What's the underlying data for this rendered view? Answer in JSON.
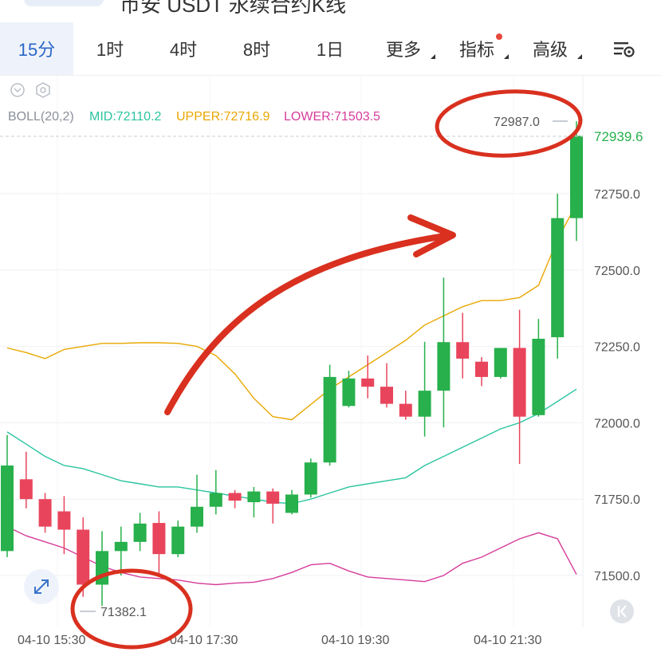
{
  "header_fragment": "币安 USDT 永续合约K线",
  "tabs": [
    {
      "label": "15分",
      "active": true
    },
    {
      "label": "1时"
    },
    {
      "label": "4时"
    },
    {
      "label": "8时"
    },
    {
      "label": "1日"
    },
    {
      "label": "更多",
      "dropdown": true
    },
    {
      "label": "指标",
      "dropdown": true,
      "badge": true
    },
    {
      "label": "高级",
      "dropdown": true
    }
  ],
  "settings_icon": "chart-settings-icon",
  "indicator": {
    "name": "BOLL(20,2)",
    "mid_label": "MID:72110.2",
    "upper_label": "UPPER:72716.9",
    "lower_label": "LOWER:71503.5",
    "colors": {
      "mid": "#2bc4a0",
      "upper": "#e8a700",
      "lower": "#d63c9b"
    }
  },
  "colors": {
    "up": "#27b04b",
    "down": "#e8455c",
    "annotation": "#d9301f",
    "price_tag": "#27b04b"
  },
  "annotations": {
    "high_label": "72987.0",
    "low_label": "71382.1"
  },
  "current_price": "72939.6",
  "chart_data": {
    "type": "candlestick",
    "y_ticks": [
      72750.0,
      72500.0,
      72250.0,
      72000.0,
      71750.0,
      71500.0
    ],
    "y_tick_labels": [
      "72750.0",
      "72500.0",
      "72250.0",
      "72000.0",
      "71750.0",
      "71500.0"
    ],
    "x_tick_labels": [
      "04-10 15:30",
      "04-10 17:30",
      "04-10 19:30",
      "04-10 21:30"
    ],
    "candles": [
      {
        "o": 71580,
        "h": 71960,
        "l": 71560,
        "c": 71860
      },
      {
        "o": 71815,
        "h": 71905,
        "l": 71720,
        "c": 71750
      },
      {
        "o": 71750,
        "h": 71770,
        "l": 71640,
        "c": 71660
      },
      {
        "o": 71710,
        "h": 71760,
        "l": 71570,
        "c": 71650
      },
      {
        "o": 71650,
        "h": 71690,
        "l": 71430,
        "c": 71470
      },
      {
        "o": 71470,
        "h": 71645,
        "l": 71400,
        "c": 71580
      },
      {
        "o": 71580,
        "h": 71660,
        "l": 71500,
        "c": 71610
      },
      {
        "o": 71610,
        "h": 71705,
        "l": 71580,
        "c": 71670
      },
      {
        "o": 71672,
        "h": 71710,
        "l": 71500,
        "c": 71570
      },
      {
        "o": 71570,
        "h": 71680,
        "l": 71560,
        "c": 71660
      },
      {
        "o": 71660,
        "h": 71830,
        "l": 71640,
        "c": 71725
      },
      {
        "o": 71725,
        "h": 71845,
        "l": 71700,
        "c": 71770
      },
      {
        "o": 71770,
        "h": 71780,
        "l": 71720,
        "c": 71745
      },
      {
        "o": 71740,
        "h": 71790,
        "l": 71690,
        "c": 71775
      },
      {
        "o": 71775,
        "h": 71785,
        "l": 71670,
        "c": 71735
      },
      {
        "o": 71705,
        "h": 71780,
        "l": 71700,
        "c": 71765
      },
      {
        "o": 71765,
        "h": 71883,
        "l": 71755,
        "c": 71870
      },
      {
        "o": 71870,
        "h": 72190,
        "l": 71860,
        "c": 72150
      },
      {
        "o": 72055,
        "h": 72170,
        "l": 72050,
        "c": 72145
      },
      {
        "o": 72145,
        "h": 72220,
        "l": 72080,
        "c": 72118
      },
      {
        "o": 72118,
        "h": 72195,
        "l": 72050,
        "c": 72062
      },
      {
        "o": 72062,
        "h": 72105,
        "l": 72010,
        "c": 72020
      },
      {
        "o": 72020,
        "h": 72265,
        "l": 71955,
        "c": 72105
      },
      {
        "o": 72105,
        "h": 72475,
        "l": 71985,
        "c": 72264
      },
      {
        "o": 72264,
        "h": 72360,
        "l": 72145,
        "c": 72210
      },
      {
        "o": 72200,
        "h": 72215,
        "l": 72120,
        "c": 72150
      },
      {
        "o": 72150,
        "h": 72245,
        "l": 72145,
        "c": 72245
      },
      {
        "o": 72245,
        "h": 72370,
        "l": 71865,
        "c": 72020
      },
      {
        "o": 72025,
        "h": 72340,
        "l": 72020,
        "c": 72275
      },
      {
        "o": 72280,
        "h": 72750,
        "l": 72210,
        "c": 72670
      },
      {
        "o": 72670,
        "h": 72987,
        "l": 72595,
        "c": 72939.6
      }
    ],
    "boll_upper": [
      72245,
      72230,
      72210,
      72240,
      72250,
      72260,
      72260,
      72262,
      72262,
      72260,
      72250,
      72220,
      72160,
      72080,
      72020,
      72010,
      72060,
      72110,
      72150,
      72190,
      72230,
      72270,
      72320,
      72350,
      72380,
      72400,
      72400,
      72410,
      72450,
      72600,
      72716.9
    ],
    "boll_mid": [
      71970,
      71930,
      71890,
      71860,
      71850,
      71830,
      71810,
      71800,
      71790,
      71790,
      71780,
      71770,
      71760,
      71750,
      71740,
      71735,
      71750,
      71770,
      71790,
      71800,
      71810,
      71820,
      71860,
      71890,
      71920,
      71950,
      71980,
      72000,
      72030,
      72070,
      72110.2
    ],
    "boll_lower": [
      71660,
      71630,
      71610,
      71590,
      71560,
      71530,
      71510,
      71495,
      71490,
      71485,
      71475,
      71470,
      71475,
      71478,
      71490,
      71510,
      71535,
      71540,
      71515,
      71495,
      71490,
      71485,
      71480,
      71500,
      71540,
      71560,
      71590,
      71620,
      71640,
      71620,
      71503.5
    ]
  }
}
